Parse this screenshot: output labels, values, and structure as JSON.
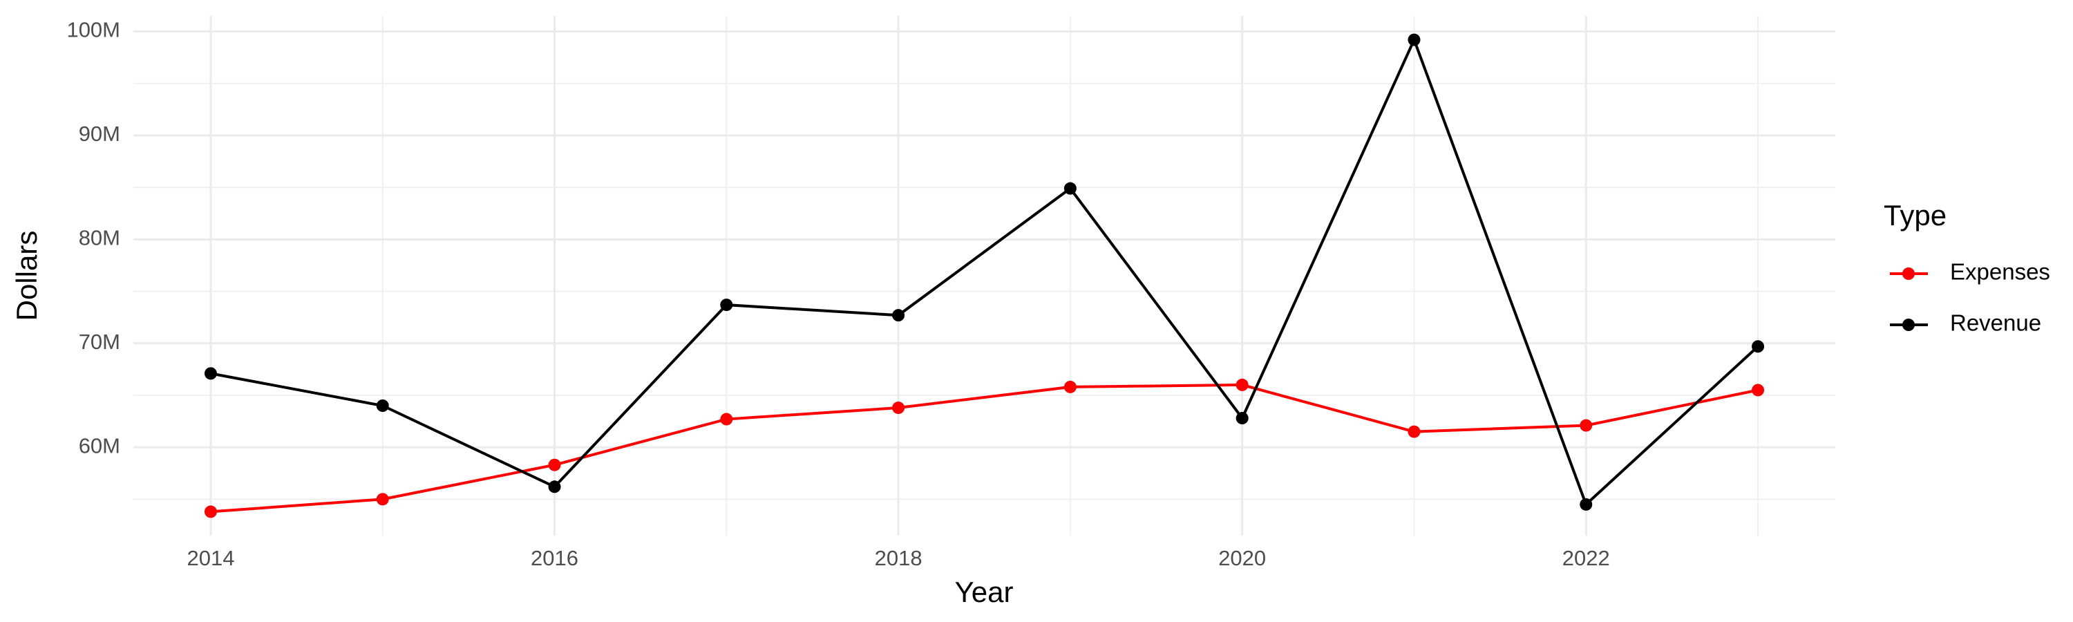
{
  "chart_data": {
    "type": "line",
    "x_label": "Year",
    "y_label": "Dollars",
    "legend_title": "Type",
    "x": [
      2014,
      2015,
      2016,
      2017,
      2018,
      2019,
      2020,
      2021,
      2022,
      2023
    ],
    "series": [
      {
        "name": "Expenses",
        "color": "#ff0000",
        "values": [
          53800000,
          55000000,
          58300000,
          62700000,
          63800000,
          65800000,
          66000000,
          61500000,
          62100000,
          65500000
        ]
      },
      {
        "name": "Revenue",
        "color": "#000000",
        "values": [
          67100000,
          64000000,
          56200000,
          73700000,
          72700000,
          84900000,
          62800000,
          99200000,
          54500000,
          69700000
        ]
      }
    ],
    "xlim": [
      2013.55,
      2023.45
    ],
    "xticks": [
      2014,
      2016,
      2018,
      2020,
      2022
    ],
    "ylim": [
      51500000,
      101500000
    ],
    "yticks": [
      {
        "value": 60000000,
        "label": "60M"
      },
      {
        "value": 70000000,
        "label": "70M"
      },
      {
        "value": 80000000,
        "label": "80M"
      },
      {
        "value": 90000000,
        "label": "90M"
      },
      {
        "value": 100000000,
        "label": "100M"
      }
    ],
    "grid": true,
    "legend": "right"
  }
}
